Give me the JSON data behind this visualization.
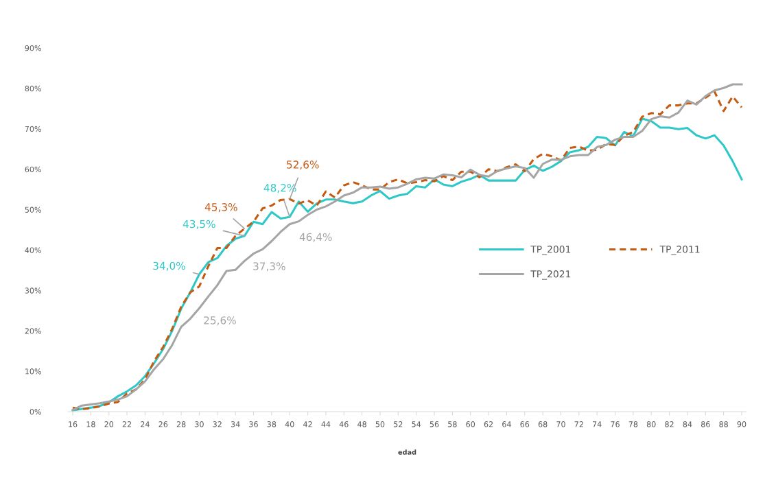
{
  "chart_data": {
    "type": "line",
    "xlabel": "edad",
    "x": [
      16,
      17,
      18,
      19,
      20,
      21,
      22,
      23,
      24,
      25,
      26,
      27,
      28,
      29,
      30,
      31,
      32,
      33,
      34,
      35,
      36,
      37,
      38,
      39,
      40,
      41,
      42,
      43,
      44,
      45,
      46,
      47,
      48,
      49,
      50,
      51,
      52,
      53,
      54,
      55,
      56,
      57,
      58,
      59,
      60,
      61,
      62,
      63,
      64,
      65,
      66,
      67,
      68,
      69,
      70,
      71,
      72,
      73,
      74,
      75,
      76,
      77,
      78,
      79,
      80,
      81,
      82,
      83,
      84,
      85,
      86,
      87,
      88,
      89,
      90
    ],
    "series": [
      {
        "name": "TP_2001",
        "color": "#2ec8c8",
        "line_style": "solid",
        "values": [
          0.3,
          0.7,
          1.0,
          1.4,
          2.3,
          3.8,
          5.0,
          6.5,
          8.8,
          12,
          15.5,
          20,
          25.5,
          29.5,
          34.0,
          37,
          38,
          41,
          42.8,
          43.5,
          47,
          46.4,
          49.4,
          47.8,
          48.2,
          52,
          49.5,
          51.5,
          52.5,
          52.5,
          52,
          51.6,
          52,
          53.5,
          54.6,
          52.7,
          53.5,
          53.9,
          55.8,
          55.5,
          57.5,
          56.2,
          55.8,
          56.9,
          57.6,
          58.6,
          57.2,
          57.2,
          57.2,
          57.2,
          59.8,
          60.9,
          59.6,
          60.6,
          62,
          64.2,
          64.7,
          65.5,
          68,
          67.7,
          65.9,
          69.2,
          68.2,
          72.5,
          71.9,
          70.3,
          70.3,
          69.9,
          70.2,
          68.4,
          67.6,
          68.4,
          65.9,
          62,
          57.5
        ]
      },
      {
        "name": "TP_2011",
        "color": "#c55a11",
        "line_style": "dashed",
        "values": [
          1.0,
          0.6,
          0.9,
          1.3,
          2.0,
          2.4,
          4.5,
          5.5,
          8.0,
          12.5,
          16,
          20.5,
          26,
          29.5,
          31,
          36,
          40.5,
          40.5,
          43.5,
          45.3,
          47,
          50.3,
          51,
          52.4,
          52.6,
          51.5,
          52.3,
          51,
          54.5,
          53,
          56,
          56.8,
          56,
          55,
          55,
          56.8,
          57.5,
          56.5,
          56.8,
          57.3,
          57,
          58.3,
          57.3,
          59.4,
          59.4,
          58,
          60,
          59.5,
          60.5,
          61.2,
          59.5,
          62.5,
          63.8,
          63.2,
          62.2,
          65.3,
          65.6,
          64.6,
          64.8,
          66.2,
          66,
          68.3,
          69.2,
          73,
          73.9,
          73.6,
          75.8,
          75.8,
          76.3,
          76.3,
          77.7,
          79.2,
          74.4,
          78,
          75.3
        ]
      },
      {
        "name": "TP_2021",
        "color": "#a5a5a5",
        "line_style": "solid",
        "values": [
          0.4,
          1.5,
          1.8,
          2.1,
          2.5,
          3.0,
          3.8,
          5.5,
          7.5,
          10.5,
          13,
          16.5,
          21,
          23,
          25.6,
          28.5,
          31.3,
          34.8,
          35.1,
          37.3,
          39.1,
          40.2,
          42.2,
          44.5,
          46.4,
          47.1,
          48.7,
          50,
          50.8,
          52,
          53.5,
          54.2,
          55.5,
          55.5,
          55.7,
          55.2,
          55.5,
          56.4,
          57.5,
          57.9,
          57.7,
          58.7,
          58.5,
          58,
          59.9,
          58.6,
          58.2,
          59.6,
          60.2,
          60.7,
          60.3,
          57.9,
          61.3,
          62.4,
          62.3,
          63.2,
          63.5,
          63.5,
          65.5,
          66,
          67.3,
          68,
          68,
          69.5,
          72.4,
          73.1,
          72.8,
          74,
          77,
          76,
          78.1,
          79.5,
          80.1,
          81,
          81
        ]
      }
    ],
    "xlim": [
      15.5,
      90.5
    ],
    "xticks": [
      16,
      18,
      20,
      22,
      24,
      26,
      28,
      30,
      32,
      34,
      36,
      38,
      40,
      42,
      44,
      46,
      48,
      50,
      52,
      54,
      56,
      58,
      60,
      62,
      64,
      66,
      68,
      70,
      72,
      74,
      76,
      78,
      80,
      82,
      84,
      86,
      88,
      90
    ],
    "ylim": [
      0,
      90
    ],
    "yticks": [
      {
        "value": 0,
        "label": "0%"
      },
      {
        "value": 10,
        "label": "10%"
      },
      {
        "value": 20,
        "label": "20%"
      },
      {
        "value": 30,
        "label": "30%"
      },
      {
        "value": 40,
        "label": "40%"
      },
      {
        "value": 50,
        "label": "50%"
      },
      {
        "value": 60,
        "label": "60%"
      },
      {
        "value": 70,
        "label": "70%"
      },
      {
        "value": 80,
        "label": "80%"
      },
      {
        "value": 90,
        "label": "90%"
      }
    ],
    "grid": false,
    "legend": "right",
    "marker": "none",
    "annotations": [
      {
        "text": "34,0%",
        "x": 30,
        "y": 34.0
      },
      {
        "text": "43,5%",
        "x": 35,
        "y": 43.5
      },
      {
        "text": "48,2%",
        "x": 40,
        "y": 48.2
      },
      {
        "text": "45,3%",
        "x": 35,
        "y": 45.3
      },
      {
        "text": "52,6%",
        "x": 40,
        "y": 52.6
      },
      {
        "text": "25,6%",
        "x": 30,
        "y": 25.6
      },
      {
        "text": "37,3%",
        "x": 35,
        "y": 37.3
      },
      {
        "text": "46,4%",
        "x": 40,
        "y": 46.4
      }
    ]
  }
}
